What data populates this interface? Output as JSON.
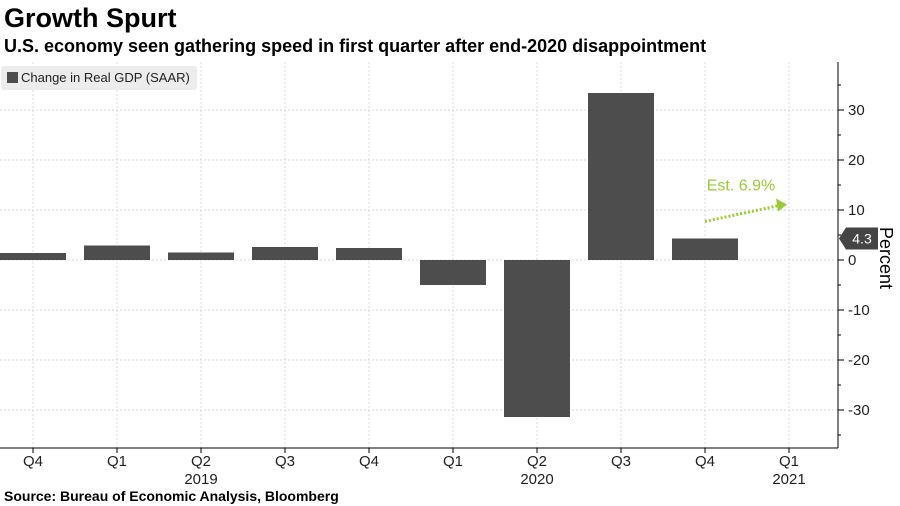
{
  "chart_data": {
    "type": "bar",
    "title": "Growth Spurt",
    "subtitle": "U.S. economy seen gathering speed in first quarter after end-2020 disappointment",
    "source": "Source: Bureau of Economic Analysis, Bloomberg",
    "ylabel": "Percent",
    "categories": [
      "Q4",
      "Q1",
      "Q2",
      "Q3",
      "Q4",
      "Q1",
      "Q2",
      "Q3",
      "Q4",
      "Q1"
    ],
    "year_labels": [
      {
        "label": "2019",
        "category_index": 2
      },
      {
        "label": "2020",
        "category_index": 6
      },
      {
        "label": "2021",
        "category_index": 9
      }
    ],
    "series": [
      {
        "name": "Change in Real GDP (SAAR)",
        "color": "#4d4d4d",
        "values": [
          1.4,
          2.9,
          1.5,
          2.6,
          2.4,
          -5.0,
          -31.4,
          33.4,
          4.3,
          null
        ]
      }
    ],
    "ylim": [
      -38,
      40
    ],
    "yticks": [
      -30,
      -20,
      -10,
      0,
      10,
      20,
      30
    ],
    "grid": true,
    "legend_position": "top-left",
    "last_value_badge": "4.3",
    "annotation": {
      "text": "Est. 6.9%",
      "color": "#99cc33",
      "from_category_index": 8,
      "to_category_index": 9,
      "from_value": 4.3,
      "to_value": 6.9
    }
  }
}
